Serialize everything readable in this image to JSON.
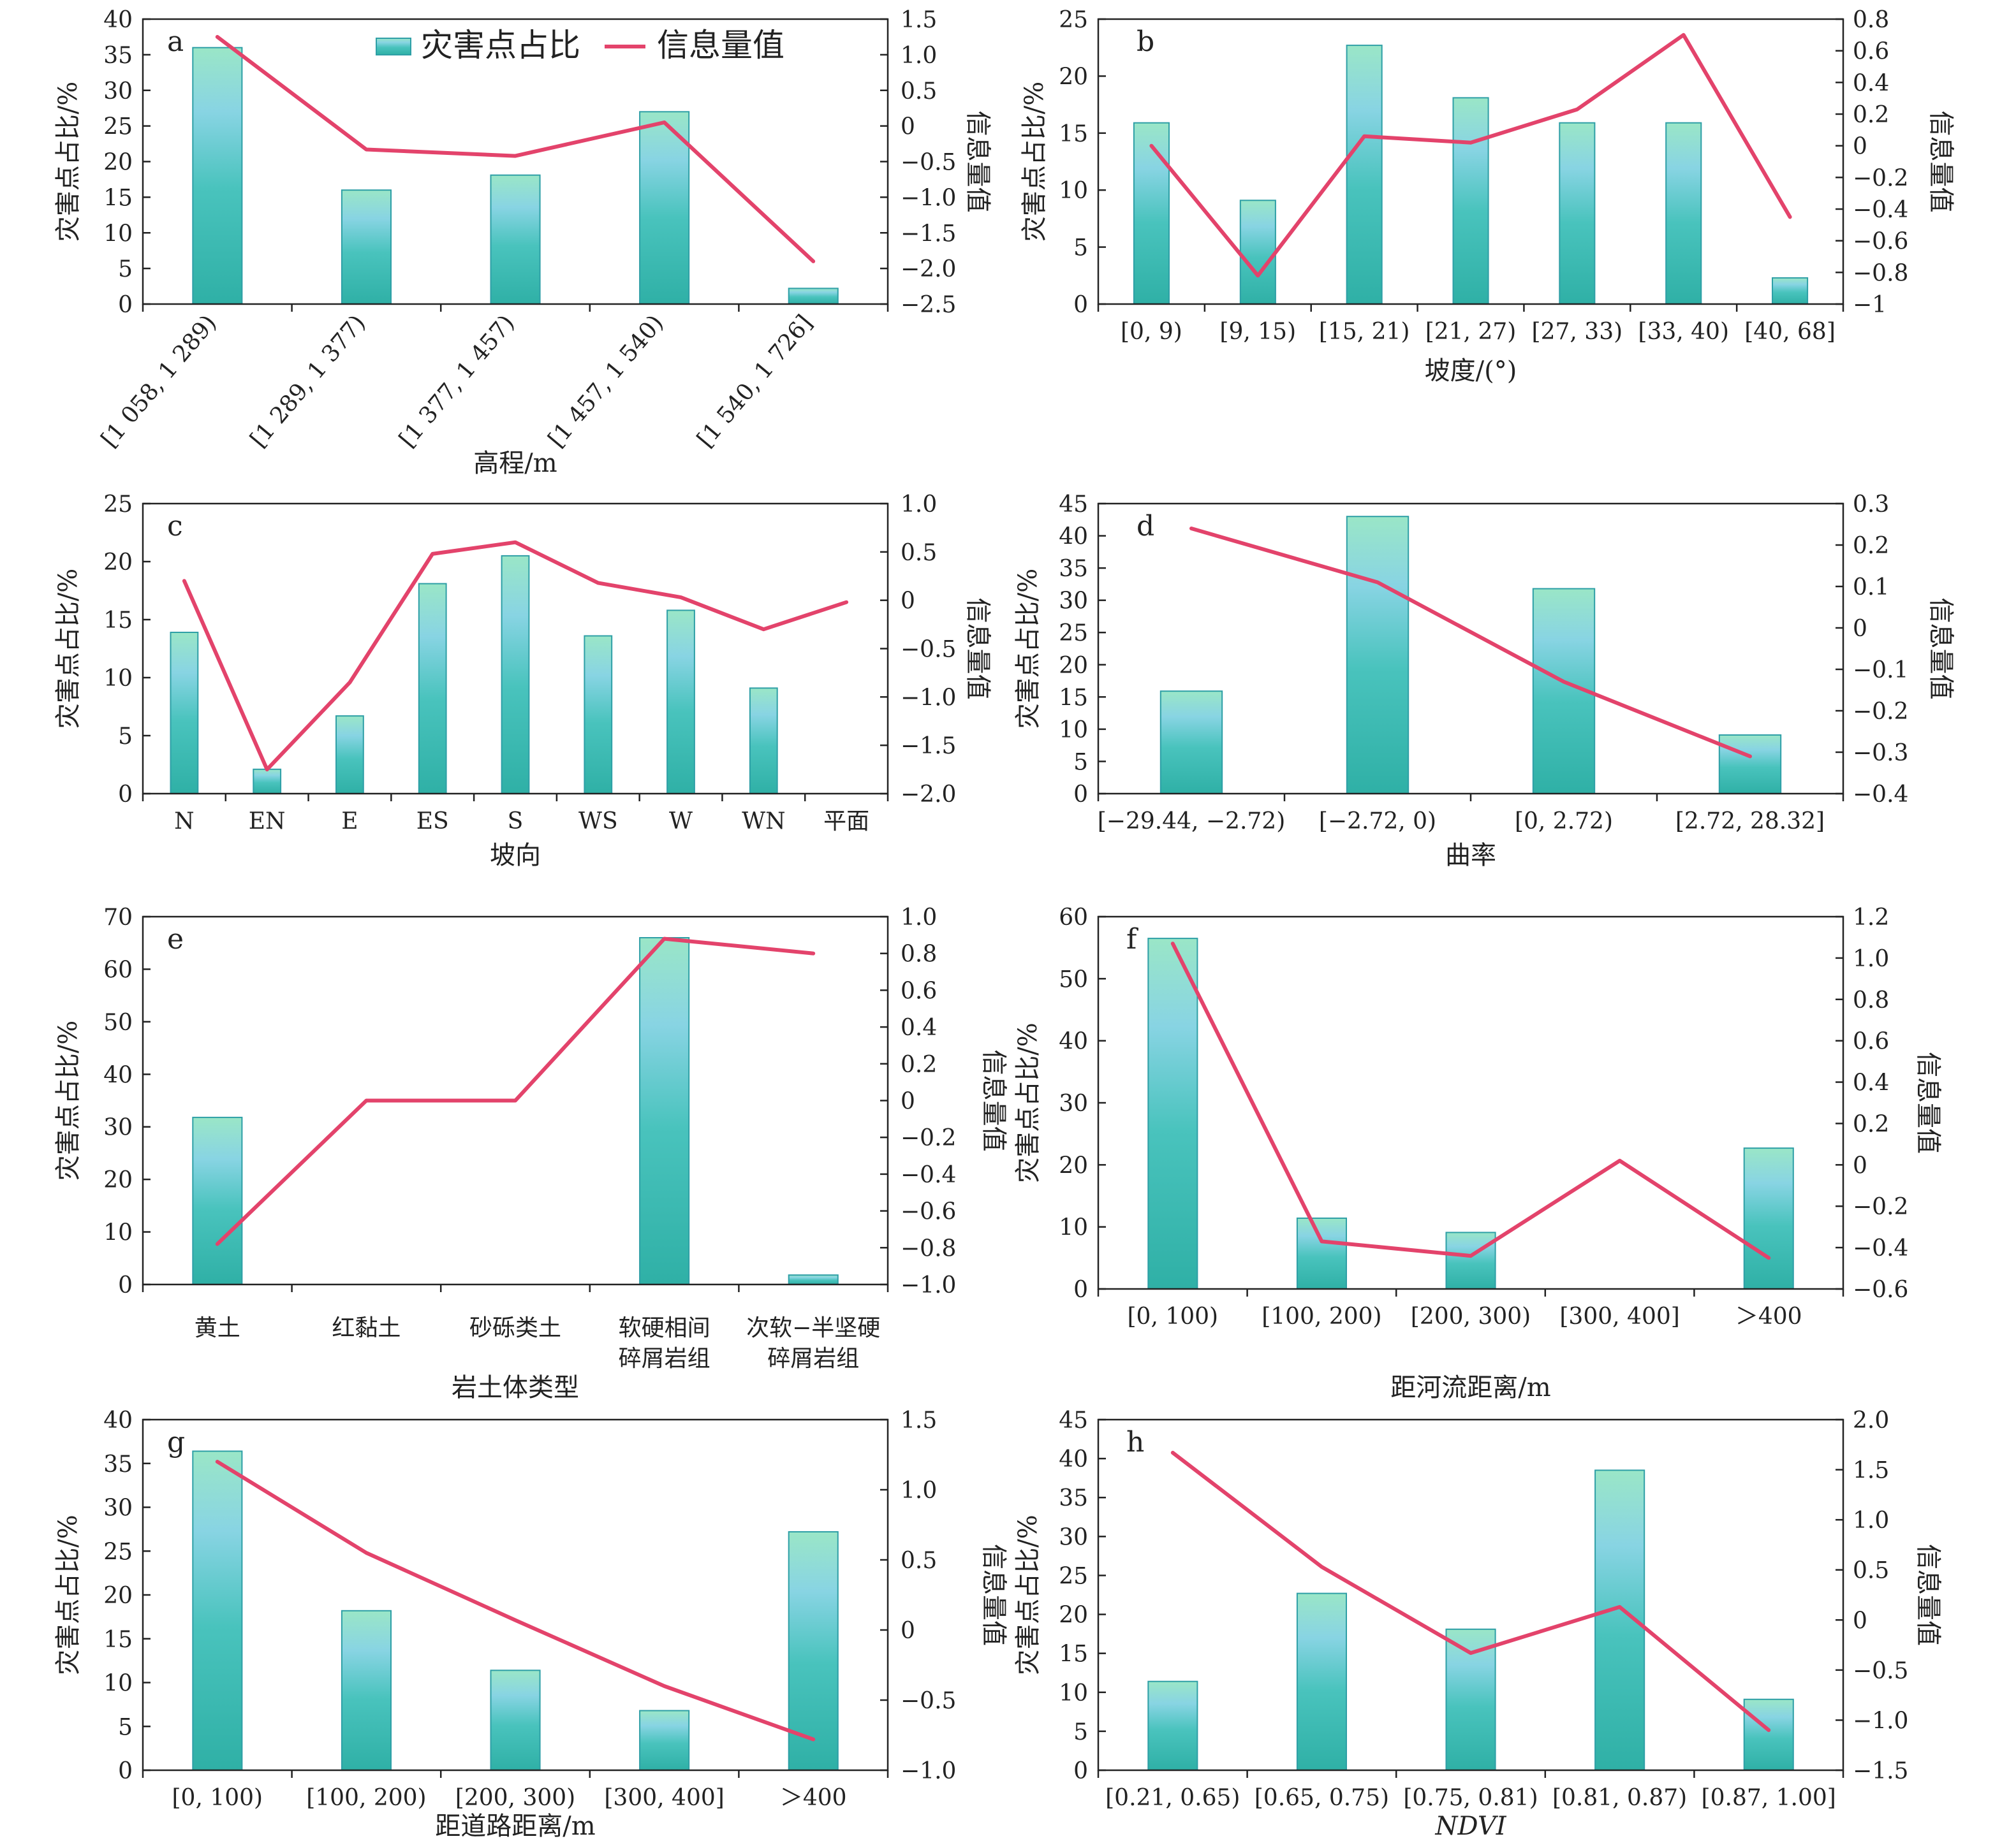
{
  "legend": {
    "bar_label": "灾害点占比",
    "line_label": "信息量值"
  },
  "colors": {
    "bar_top": "#98e3c8",
    "bar_mid": "#86cfe0",
    "bar_bottom": "#31b3ab",
    "bar_edge": "#2e9fa6",
    "line": "#e3436b",
    "axis": "#222222"
  },
  "chart_data": [
    {
      "id": "a",
      "type": "bar+line",
      "categories": [
        "[1 058, 1 289)",
        "[1 289, 1 377)",
        "[1 377, 1 457)",
        "[1 457, 1 540)",
        "[1 540, 1 726]"
      ],
      "bar_values": [
        36,
        16,
        18.1,
        27,
        2.2
      ],
      "line_values": [
        1.25,
        -0.33,
        -0.42,
        0.05,
        -1.9
      ],
      "xlabel": "高程/m",
      "ylabel_left": "灾害点占比/%",
      "ylabel_right": "信息量值",
      "ylim_left": [
        0,
        40
      ],
      "yticks_left": [
        0,
        5,
        10,
        15,
        20,
        25,
        30,
        35,
        40
      ],
      "ylim_right": [
        -2.5,
        1.5
      ],
      "yticks_right": [
        -2.5,
        -2.0,
        -1.5,
        -1.0,
        -0.5,
        0,
        0.5,
        1.0,
        1.5
      ],
      "yticklabels_right": [
        "−2.5",
        "−2.0",
        "−1.5",
        "−1.0",
        "−0.5",
        "0",
        "0.5",
        "1.0",
        "1.5"
      ],
      "rotate_xticks": true,
      "show_legend": true
    },
    {
      "id": "b",
      "type": "bar+line",
      "categories": [
        "[0, 9)",
        "[9, 15)",
        "[15, 21)",
        "[21, 27)",
        "[27, 33)",
        "[33, 40)",
        "[40, 68]"
      ],
      "bar_values": [
        15.9,
        9.1,
        22.7,
        18.1,
        15.9,
        15.9,
        2.3
      ],
      "line_values": [
        0,
        -0.82,
        0.06,
        0.02,
        0.23,
        0.7,
        -0.45
      ],
      "xlabel": "坡度/(°)",
      "ylabel_left": "灾害点占比/%",
      "ylabel_right": "信息量值",
      "ylim_left": [
        0,
        25
      ],
      "yticks_left": [
        0,
        5,
        10,
        15,
        20,
        25
      ],
      "ylim_right": [
        -1,
        0.8
      ],
      "yticks_right": [
        -1,
        -0.8,
        -0.6,
        -0.4,
        -0.2,
        0,
        0.2,
        0.4,
        0.6,
        0.8
      ],
      "yticklabels_right": [
        "−1",
        "−0.8",
        "−0.6",
        "−0.4",
        "−0.2",
        "0",
        "0.2",
        "0.4",
        "0.6",
        "0.8"
      ],
      "rotate_xticks": false,
      "show_legend": false
    },
    {
      "id": "c",
      "type": "bar+line",
      "categories": [
        "N",
        "EN",
        "E",
        "ES",
        "S",
        "WS",
        "W",
        "WN",
        "平面"
      ],
      "bar_values": [
        13.9,
        2.1,
        6.7,
        18.1,
        20.5,
        13.6,
        15.8,
        9.1,
        0
      ],
      "line_values": [
        0.2,
        -1.75,
        -0.85,
        0.48,
        0.6,
        0.18,
        0.03,
        -0.3,
        -0.02
      ],
      "xlabel": "坡向",
      "ylabel_left": "灾害点占比/%",
      "ylabel_right": "信息量值",
      "ylim_left": [
        0,
        25
      ],
      "yticks_left": [
        0,
        5,
        10,
        15,
        20,
        25
      ],
      "ylim_right": [
        -2.0,
        1.0
      ],
      "yticks_right": [
        -2.0,
        -1.5,
        -1.0,
        -0.5,
        0,
        0.5,
        1.0
      ],
      "yticklabels_right": [
        "−2.0",
        "−1.5",
        "−1.0",
        "−0.5",
        "0",
        "0.5",
        "1.0"
      ],
      "rotate_xticks": false,
      "show_legend": false
    },
    {
      "id": "d",
      "type": "bar+line",
      "categories": [
        "[−29.44, −2.72)",
        "[−2.72, 0)",
        "[0, 2.72)",
        "[2.72, 28.32]"
      ],
      "bar_values": [
        15.9,
        43,
        31.8,
        9.1
      ],
      "line_values": [
        0.24,
        0.11,
        -0.13,
        -0.31
      ],
      "xlabel": "曲率",
      "ylabel_left": "灾害点占比/%",
      "ylabel_right": "信息量值",
      "ylim_left": [
        0,
        45
      ],
      "yticks_left": [
        0,
        5,
        10,
        15,
        20,
        25,
        30,
        35,
        40,
        45
      ],
      "ylim_right": [
        -0.4,
        0.3
      ],
      "yticks_right": [
        -0.4,
        -0.3,
        -0.2,
        -0.1,
        0,
        0.1,
        0.2,
        0.3
      ],
      "yticklabels_right": [
        "−0.4",
        "−0.3",
        "−0.2",
        "−0.1",
        "0",
        "0.1",
        "0.2",
        "0.3"
      ],
      "rotate_xticks": false,
      "show_legend": false
    },
    {
      "id": "e",
      "type": "bar+line",
      "categories": [
        [
          "黄土"
        ],
        [
          "红黏土"
        ],
        [
          "砂砾类土"
        ],
        [
          "软硬相间",
          "碎屑岩组"
        ],
        [
          "次软−半坚硬",
          "碎屑岩组"
        ]
      ],
      "bar_values": [
        31.8,
        0,
        0,
        66,
        1.8
      ],
      "line_values": [
        -0.78,
        0,
        0,
        0.88,
        0.8
      ],
      "xlabel": "岩土体类型",
      "ylabel_left": "灾害点占比/%",
      "ylabel_right": "信息量值",
      "ylim_left": [
        0,
        70
      ],
      "yticks_left": [
        0,
        10,
        20,
        30,
        40,
        50,
        60,
        70
      ],
      "ylim_right": [
        -1.0,
        1.0
      ],
      "yticks_right": [
        -1.0,
        -0.8,
        -0.6,
        -0.4,
        -0.2,
        0,
        0.2,
        0.4,
        0.6,
        0.8,
        1.0
      ],
      "yticklabels_right": [
        "−1.0",
        "−0.8",
        "−0.6",
        "−0.4",
        "−0.2",
        "0",
        "0.2",
        "0.4",
        "0.6",
        "0.8",
        "1.0"
      ],
      "rotate_xticks": false,
      "show_legend": false
    },
    {
      "id": "f",
      "type": "bar+line",
      "categories": [
        "[0, 100)",
        "[100, 200)",
        "[200, 300)",
        "[300, 400]",
        "＞400"
      ],
      "bar_values": [
        56.5,
        11.4,
        9.1,
        0,
        22.7
      ],
      "line_values": [
        1.07,
        -0.37,
        -0.44,
        0.02,
        -0.45
      ],
      "xlabel": "距河流距离/m",
      "ylabel_left": "灾害点占比/%",
      "ylabel_right": "信息量值",
      "ylim_left": [
        0,
        60
      ],
      "yticks_left": [
        0,
        10,
        20,
        30,
        40,
        50,
        60
      ],
      "ylim_right": [
        -0.6,
        1.2
      ],
      "yticks_right": [
        -0.6,
        -0.4,
        -0.2,
        0,
        0.2,
        0.4,
        0.6,
        0.8,
        1.0,
        1.2
      ],
      "yticklabels_right": [
        "−0.6",
        "−0.4",
        "−0.2",
        "0",
        "0.2",
        "0.4",
        "0.6",
        "0.8",
        "1.0",
        "1.2"
      ],
      "rotate_xticks": false,
      "show_legend": false
    },
    {
      "id": "g",
      "type": "bar+line",
      "categories": [
        "[0, 100)",
        "[100, 200)",
        "[200, 300)",
        "[300, 400]",
        "＞400"
      ],
      "bar_values": [
        36.4,
        18.2,
        11.4,
        6.8,
        27.2
      ],
      "line_values": [
        1.2,
        0.55,
        0.07,
        -0.4,
        -0.78
      ],
      "xlabel": "距道路距离/m",
      "ylabel_left": "灾害点占比/%",
      "ylabel_right": "信息量值",
      "ylim_left": [
        0,
        40
      ],
      "yticks_left": [
        0,
        5,
        10,
        15,
        20,
        25,
        30,
        35,
        40
      ],
      "ylim_right": [
        -1.0,
        1.5
      ],
      "yticks_right": [
        -1.0,
        -0.5,
        0,
        0.5,
        1.0,
        1.5
      ],
      "yticklabels_right": [
        "−1.0",
        "−0.5",
        "0",
        "0.5",
        "1.0",
        "1.5"
      ],
      "rotate_xticks": false,
      "show_legend": false
    },
    {
      "id": "h",
      "type": "bar+line",
      "categories": [
        "[0.21, 0.65)",
        "[0.65, 0.75)",
        "[0.75, 0.81)",
        "[0.81, 0.87)",
        "[0.87, 1.00]"
      ],
      "bar_values": [
        11.4,
        22.7,
        18.1,
        38.5,
        9.1
      ],
      "line_values": [
        1.67,
        0.53,
        -0.33,
        0.13,
        -1.1
      ],
      "xlabel": "NDVI",
      "ylabel_left": "灾害点占比/%",
      "ylabel_right": "信息量值",
      "ylim_left": [
        0,
        45
      ],
      "yticks_left": [
        0,
        5,
        10,
        15,
        20,
        25,
        30,
        35,
        40,
        45
      ],
      "ylim_right": [
        -1.5,
        2.0
      ],
      "yticks_right": [
        -1.5,
        -1.0,
        -0.5,
        0,
        0.5,
        1.0,
        1.5,
        2.0
      ],
      "yticklabels_right": [
        "−1.5",
        "−1.0",
        "−0.5",
        "0",
        "0.5",
        "1.0",
        "1.5",
        "2.0"
      ],
      "rotate_xticks": false,
      "show_legend": false,
      "xlabel_italic": true
    }
  ]
}
